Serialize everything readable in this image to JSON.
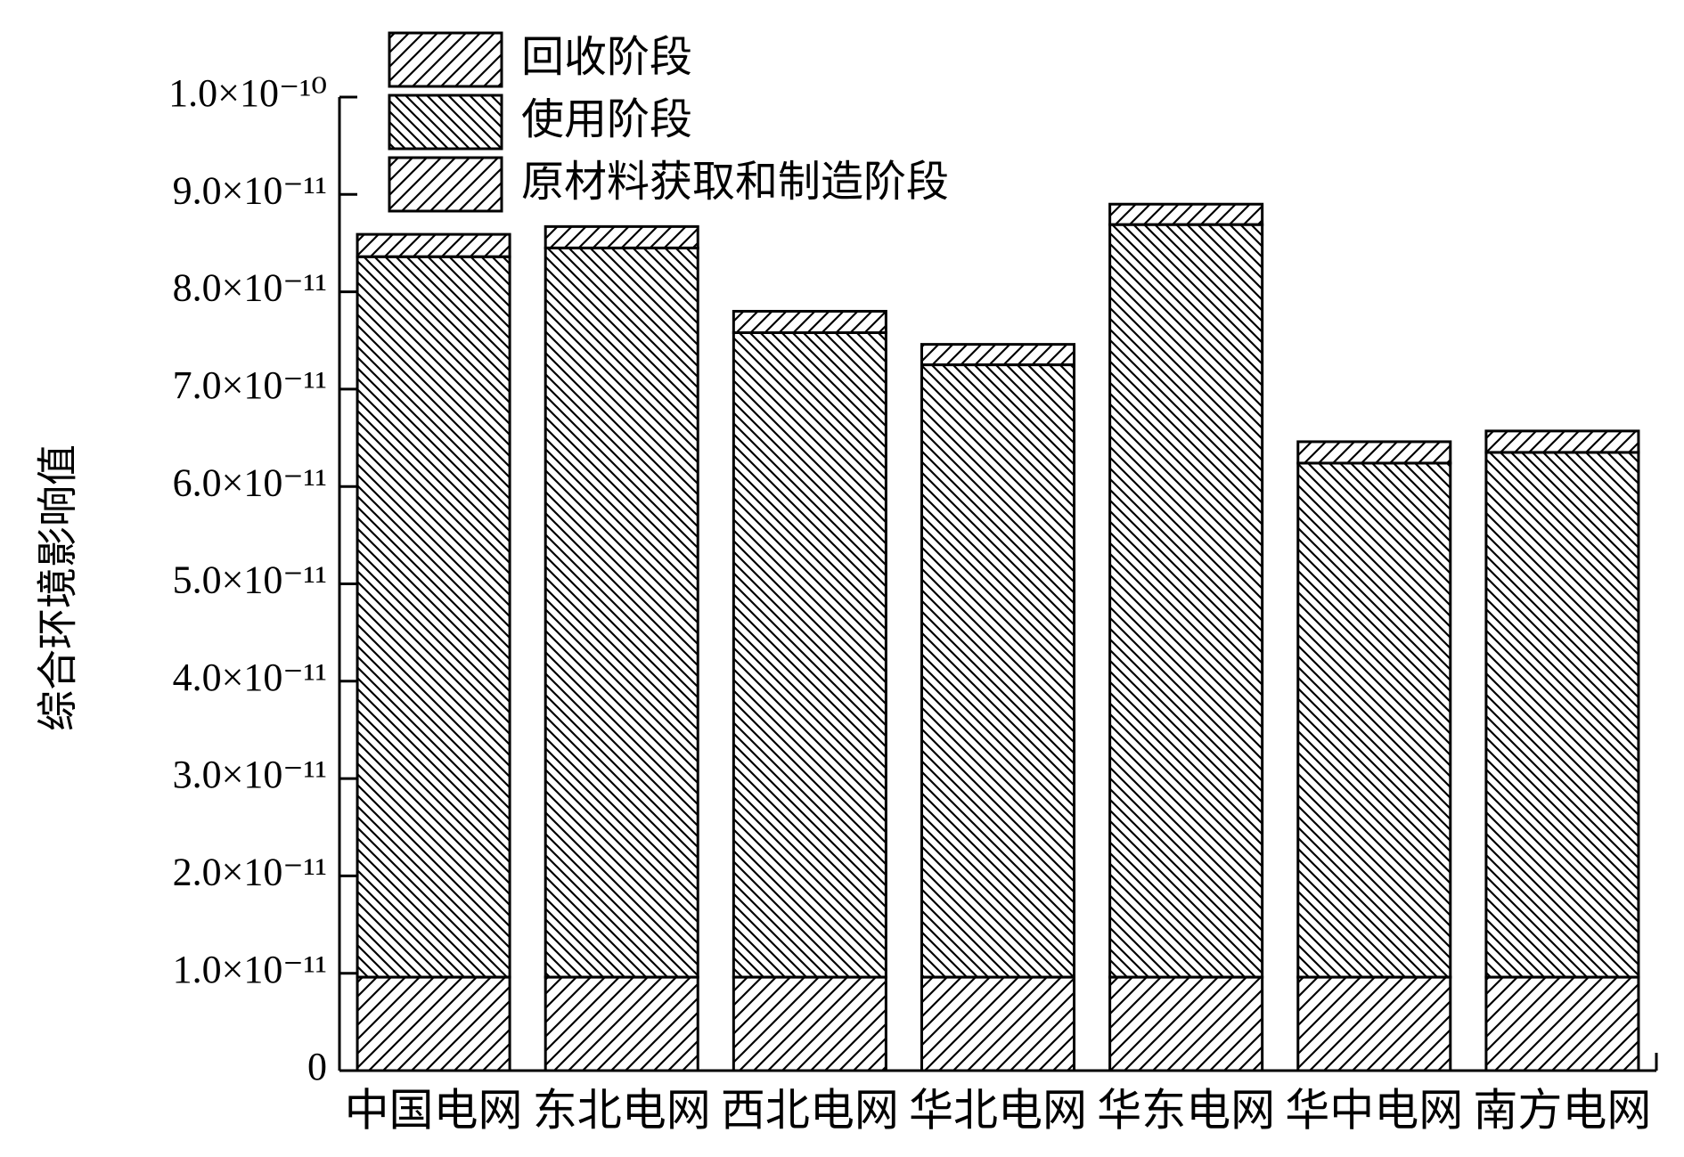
{
  "chart_data": {
    "type": "stacked_bar",
    "y_label": "综合环境影响值",
    "categories": [
      "中国电网",
      "东北电网",
      "西北电网",
      "华北电网",
      "华东电网",
      "华中电网",
      "南方电网"
    ],
    "series": [
      {
        "name": "原材料获取和制造阶段",
        "color": "#000000",
        "hatch": "/",
        "values": [
          9.6e-12,
          9.6e-12,
          9.6e-12,
          9.6e-12,
          9.6e-12,
          9.6e-12,
          9.6e-12
        ]
      },
      {
        "name": "使用阶段",
        "color": "#000000",
        "hatch": "\\",
        "values": [
          7.4e-11,
          7.49e-11,
          6.62e-11,
          6.29e-11,
          7.73e-11,
          5.28e-11,
          5.39e-11
        ]
      },
      {
        "name": "回收阶段",
        "color": "#000000",
        "hatch": "/",
        "values": [
          2.3e-12,
          2.2e-12,
          2.2e-12,
          2.1e-12,
          2.1e-12,
          2.2e-12,
          2.2e-12
        ]
      }
    ],
    "ylim": [
      0,
      1e-10
    ],
    "yticks": [
      0,
      {
        "value": 1e-11,
        "label": "1.0×10⁻¹¹"
      },
      {
        "value": 2e-11,
        "label": "2.0×10⁻¹¹"
      },
      {
        "value": 3e-11,
        "label": "3.0×10⁻¹¹"
      },
      {
        "value": 4e-11,
        "label": "4.0×10⁻¹¹"
      },
      {
        "value": 5e-11,
        "label": "5.0×10⁻¹¹"
      },
      {
        "value": 6e-11,
        "label": "6.0×10⁻¹¹"
      },
      {
        "value": 7e-11,
        "label": "7.0×10⁻¹¹"
      },
      {
        "value": 8e-11,
        "label": "8.0×10⁻¹¹"
      },
      {
        "value": 9e-11,
        "label": "9.0×10⁻¹¹"
      },
      {
        "value": 1e-10,
        "label": "1.0×10⁻¹⁰"
      }
    ],
    "legend": "upper left",
    "grid": false
  }
}
